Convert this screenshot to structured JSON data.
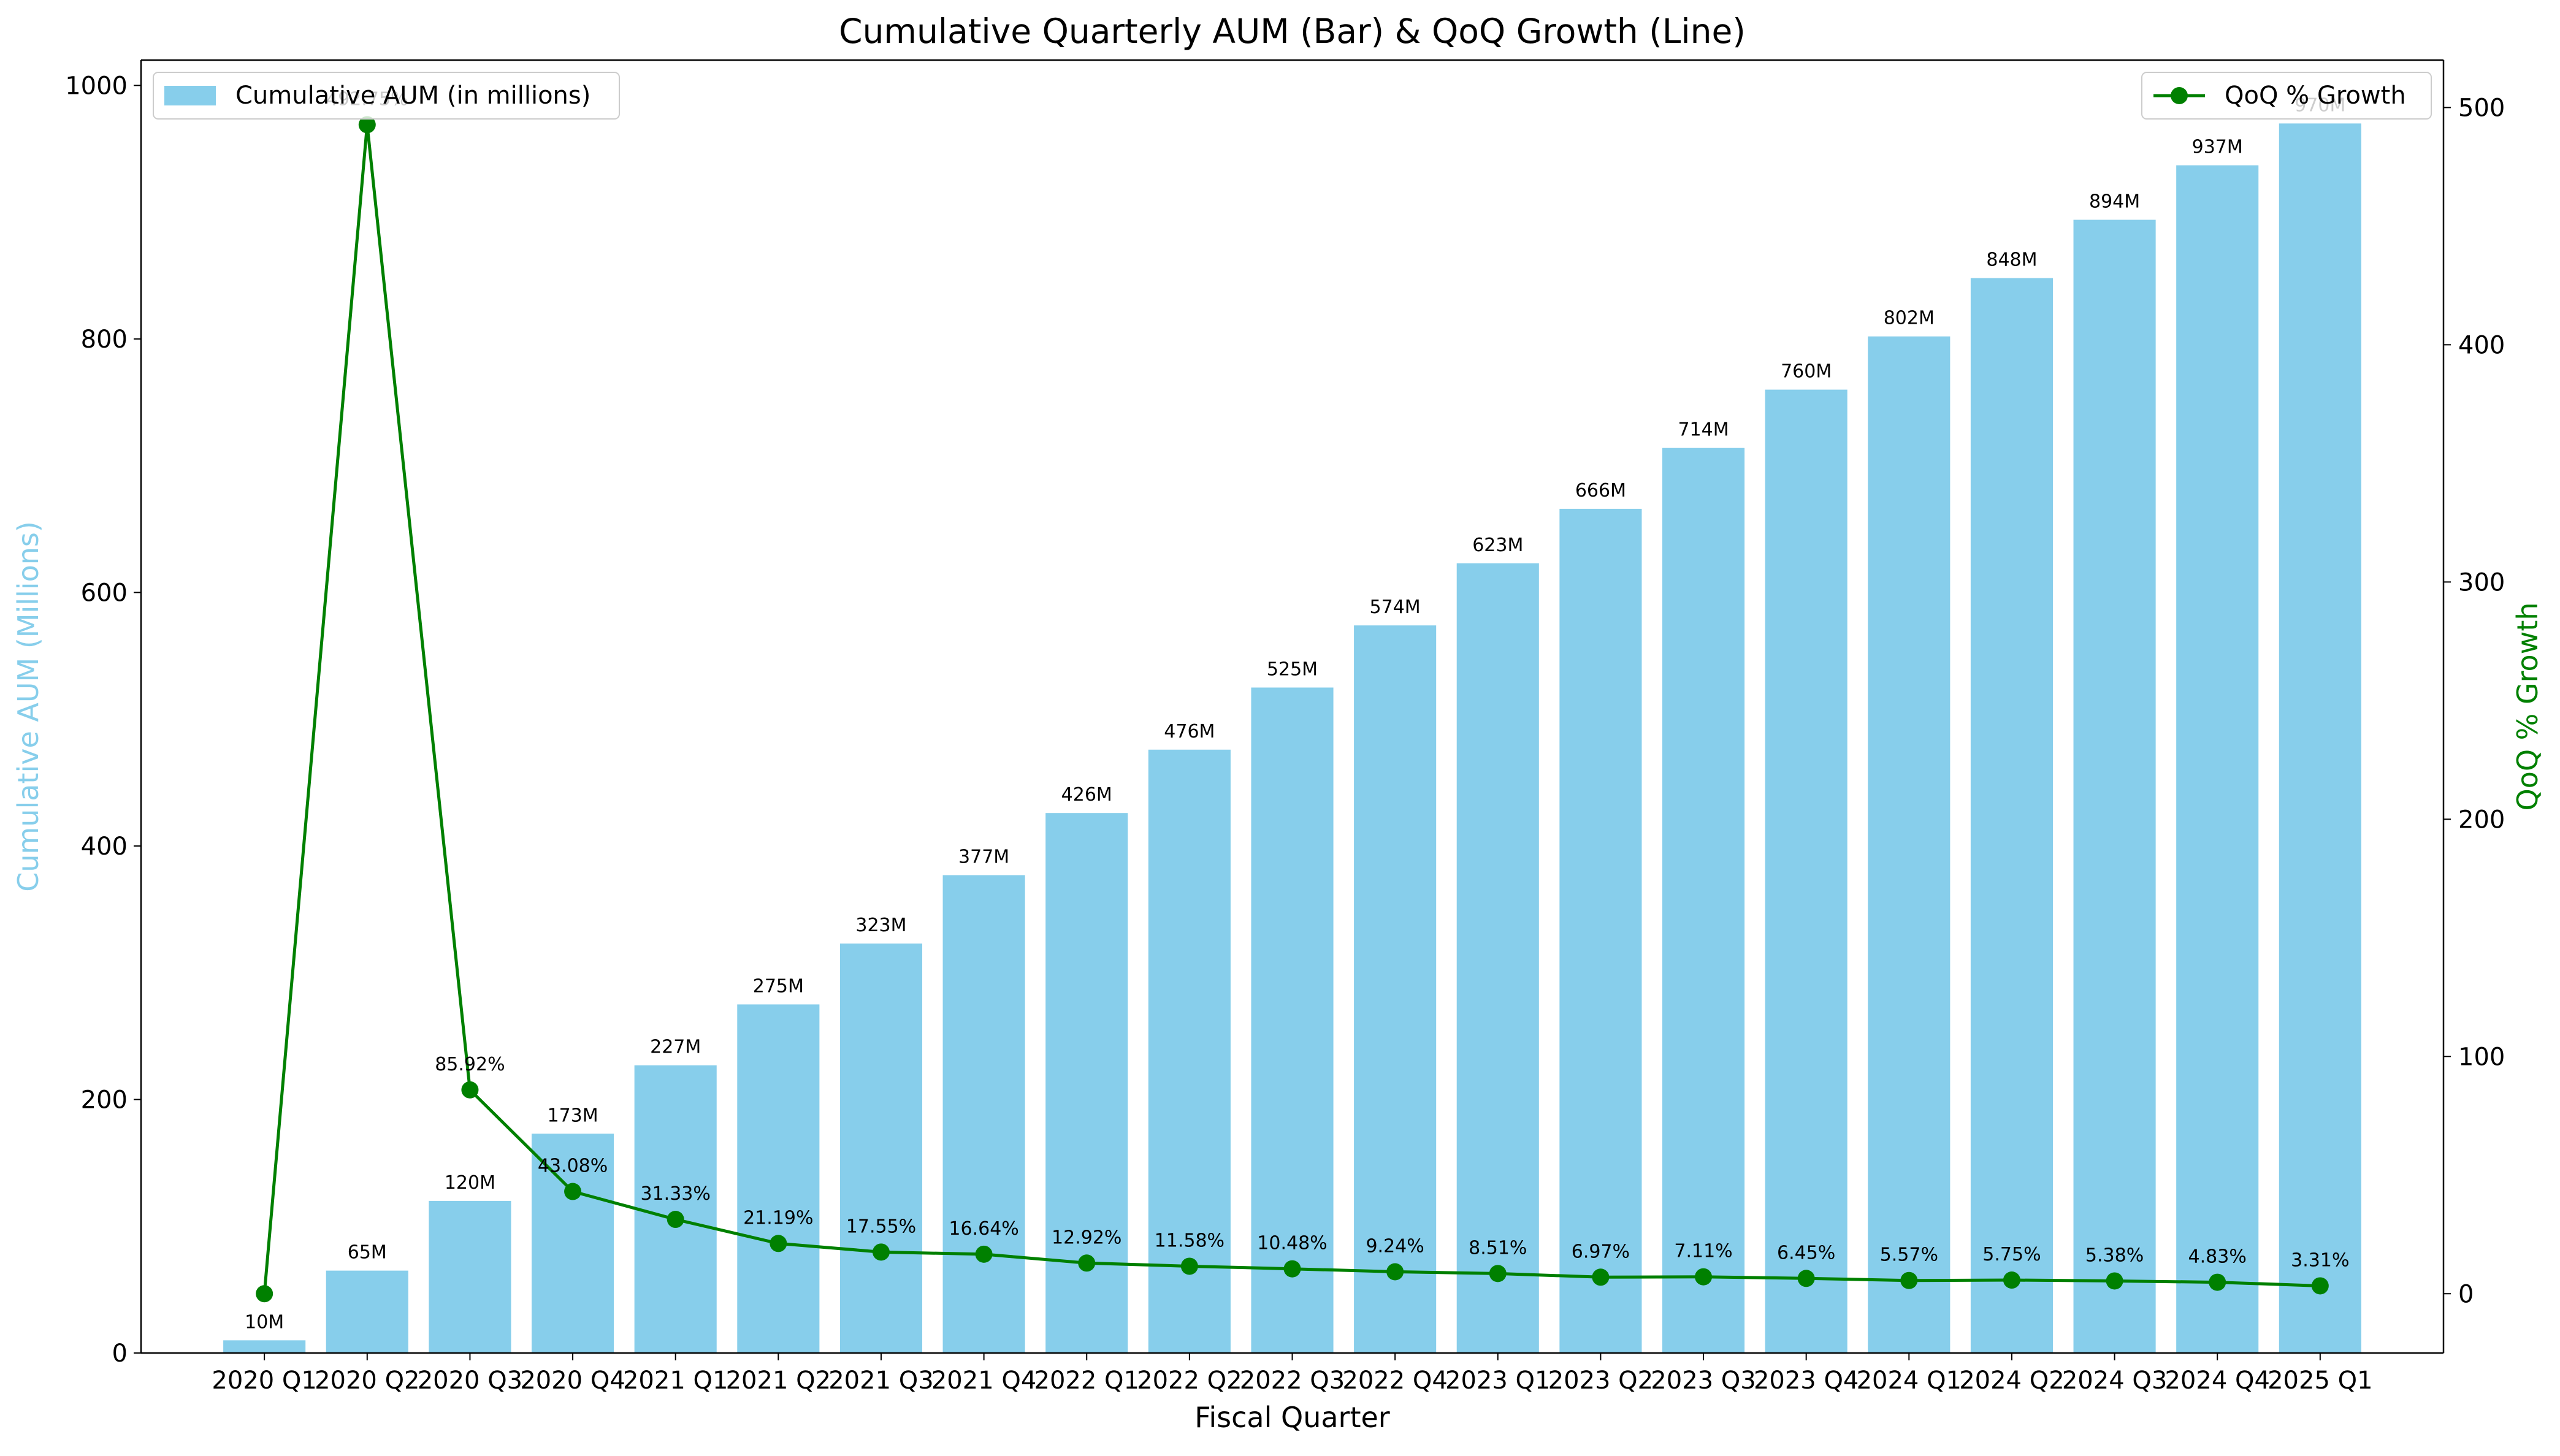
{
  "chart_data": {
    "type": "bar",
    "title": "Cumulative Quarterly AUM (Bar) & QoQ Growth (Line)",
    "xlabel": "Fiscal Quarter",
    "ylabel_left": "Cumulative AUM (Millions)",
    "ylabel_right": "QoQ % Growth",
    "categories": [
      "2020 Q1",
      "2020 Q2",
      "2020 Q3",
      "2020 Q4",
      "2021 Q1",
      "2021 Q2",
      "2021 Q3",
      "2021 Q4",
      "2022 Q1",
      "2022 Q2",
      "2022 Q3",
      "2022 Q4",
      "2023 Q1",
      "2023 Q2",
      "2023 Q3",
      "2023 Q4",
      "2024 Q1",
      "2024 Q2",
      "2024 Q3",
      "2024 Q4",
      "2025 Q1"
    ],
    "ylim_left": [
      0,
      1020
    ],
    "ylim_right": [
      -25,
      520
    ],
    "yticks_left": [
      0,
      200,
      400,
      600,
      800,
      1000
    ],
    "yticks_right": [
      0,
      100,
      200,
      300,
      400,
      500
    ],
    "series": [
      {
        "name": "Cumulative AUM (in millions)",
        "kind": "bar",
        "axis": "left",
        "color": "#87CEEB",
        "values": [
          10,
          65,
          120,
          173,
          227,
          275,
          323,
          377,
          426,
          476,
          525,
          574,
          623,
          666,
          714,
          760,
          802,
          848,
          894,
          937,
          970
        ],
        "labels": [
          "10M",
          "65M",
          "120M",
          "173M",
          "227M",
          "275M",
          "323M",
          "377M",
          "426M",
          "476M",
          "525M",
          "574M",
          "623M",
          "666M",
          "714M",
          "760M",
          "802M",
          "848M",
          "894M",
          "937M",
          "970M"
        ]
      },
      {
        "name": "QoQ % Growth",
        "kind": "line",
        "axis": "right",
        "color": "#008000",
        "values": [
          0,
          492.75,
          85.92,
          43.08,
          31.33,
          21.19,
          17.55,
          16.64,
          12.92,
          11.58,
          10.48,
          9.24,
          8.51,
          6.97,
          7.11,
          6.45,
          5.57,
          5.75,
          5.38,
          4.83,
          3.31
        ],
        "labels": [
          "",
          "492.75%",
          "85.92%",
          "43.08%",
          "31.33%",
          "21.19%",
          "17.55%",
          "16.64%",
          "12.92%",
          "11.58%",
          "10.48%",
          "9.24%",
          "8.51%",
          "6.97%",
          "7.11%",
          "6.45%",
          "5.57%",
          "5.75%",
          "5.38%",
          "4.83%",
          "3.31%"
        ]
      }
    ],
    "legend_left_placement": "upper-left",
    "legend_right_placement": "upper-right",
    "grid": false,
    "axis_color": "#000000",
    "left_label_color": "#87CEEB",
    "right_label_color": "#008000"
  }
}
